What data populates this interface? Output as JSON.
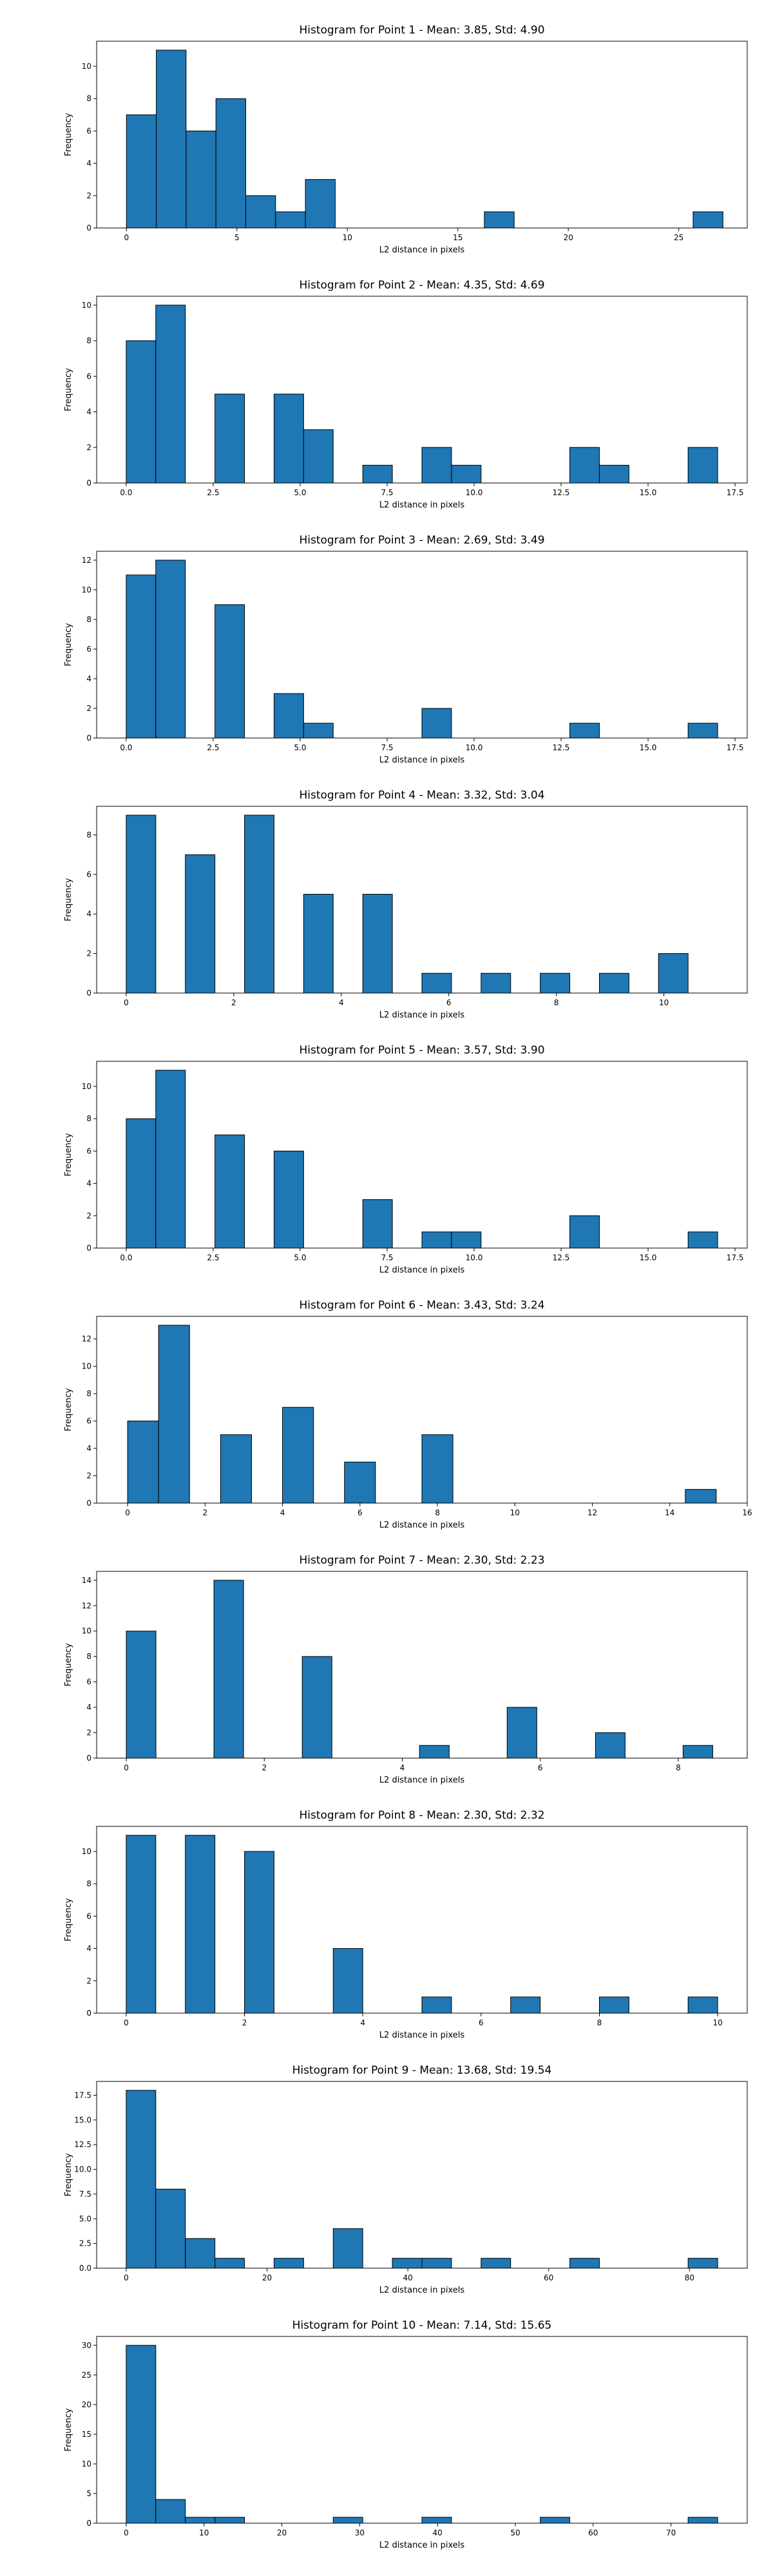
{
  "colors": {
    "bar": "#1f77b4",
    "edge": "#000000",
    "axis": "#000000",
    "background": "#ffffff"
  },
  "chart_data": [
    {
      "type": "bar",
      "title": "Histogram for Point 1 - Mean: 3.85, Std: 4.90",
      "xlabel": "L2 distance in pixels",
      "ylabel": "Frequency",
      "xlim": [
        -1.35,
        28.1
      ],
      "ylim": [
        0,
        11.55
      ],
      "xticks": [
        0,
        5,
        10,
        15,
        20,
        25
      ],
      "xtick_labels": [
        "0",
        "5",
        "10",
        "15",
        "20",
        "25"
      ],
      "yticks": [
        0,
        2,
        4,
        6,
        8,
        10
      ],
      "ytick_labels": [
        "0",
        "2",
        "4",
        "6",
        "8",
        "10"
      ],
      "bins": [
        [
          0,
          1.35,
          7
        ],
        [
          1.35,
          2.7,
          11
        ],
        [
          2.7,
          4.05,
          6
        ],
        [
          4.05,
          5.4,
          8
        ],
        [
          5.4,
          6.75,
          2
        ],
        [
          6.75,
          8.1,
          1
        ],
        [
          8.1,
          9.45,
          3
        ],
        [
          16.2,
          17.55,
          1
        ],
        [
          25.65,
          27.0,
          1
        ]
      ]
    },
    {
      "type": "bar",
      "title": "Histogram for Point 2 - Mean: 4.35, Std: 4.69",
      "xlabel": "L2 distance in pixels",
      "ylabel": "Frequency",
      "xlim": [
        -0.85,
        17.85
      ],
      "ylim": [
        0,
        10.5
      ],
      "xticks": [
        0,
        2.5,
        5,
        7.5,
        10,
        12.5,
        15,
        17.5
      ],
      "xtick_labels": [
        "0.0",
        "2.5",
        "5.0",
        "7.5",
        "10.0",
        "12.5",
        "15.0",
        "17.5"
      ],
      "yticks": [
        0,
        2,
        4,
        6,
        8,
        10
      ],
      "ytick_labels": [
        "0",
        "2",
        "4",
        "6",
        "8",
        "10"
      ],
      "bins": [
        [
          0,
          0.85,
          8
        ],
        [
          0.85,
          1.7,
          10
        ],
        [
          2.55,
          3.4,
          5
        ],
        [
          4.25,
          5.1,
          5
        ],
        [
          5.1,
          5.95,
          3
        ],
        [
          6.8,
          7.65,
          1
        ],
        [
          8.5,
          9.35,
          2
        ],
        [
          9.35,
          10.2,
          1
        ],
        [
          12.75,
          13.6,
          2
        ],
        [
          13.6,
          14.45,
          1
        ],
        [
          16.15,
          17.0,
          2
        ]
      ]
    },
    {
      "type": "bar",
      "title": "Histogram for Point 3 - Mean: 2.69, Std: 3.49",
      "xlabel": "L2 distance in pixels",
      "ylabel": "Frequency",
      "xlim": [
        -0.85,
        17.85
      ],
      "ylim": [
        0,
        12.6
      ],
      "xticks": [
        0,
        2.5,
        5,
        7.5,
        10,
        12.5,
        15,
        17.5
      ],
      "xtick_labels": [
        "0.0",
        "2.5",
        "5.0",
        "7.5",
        "10.0",
        "12.5",
        "15.0",
        "17.5"
      ],
      "yticks": [
        0,
        2,
        4,
        6,
        8,
        10,
        12
      ],
      "ytick_labels": [
        "0",
        "2",
        "4",
        "6",
        "8",
        "10",
        "12"
      ],
      "bins": [
        [
          0,
          0.85,
          11
        ],
        [
          0.85,
          1.7,
          12
        ],
        [
          2.55,
          3.4,
          9
        ],
        [
          4.25,
          5.1,
          3
        ],
        [
          5.1,
          5.95,
          1
        ],
        [
          8.5,
          9.35,
          2
        ],
        [
          12.75,
          13.6,
          1
        ],
        [
          16.15,
          17.0,
          1
        ]
      ]
    },
    {
      "type": "bar",
      "title": "Histogram for Point 4 - Mean: 3.32, Std: 3.04",
      "xlabel": "L2 distance in pixels",
      "ylabel": "Frequency",
      "xlim": [
        -0.55,
        11.55
      ],
      "ylim": [
        0,
        9.45
      ],
      "xticks": [
        0,
        2,
        4,
        6,
        8,
        10
      ],
      "xtick_labels": [
        "0",
        "2",
        "4",
        "6",
        "8",
        "10"
      ],
      "yticks": [
        0,
        2,
        4,
        6,
        8
      ],
      "ytick_labels": [
        "0",
        "2",
        "4",
        "6",
        "8"
      ],
      "bins": [
        [
          0,
          0.55,
          9
        ],
        [
          1.1,
          1.65,
          7
        ],
        [
          2.2,
          2.75,
          9
        ],
        [
          3.3,
          3.85,
          5
        ],
        [
          4.4,
          4.95,
          5
        ],
        [
          5.5,
          6.05,
          1
        ],
        [
          6.6,
          7.15,
          1
        ],
        [
          7.7,
          8.25,
          1
        ],
        [
          8.8,
          9.35,
          1
        ],
        [
          9.9,
          10.45,
          2
        ]
      ]
    },
    {
      "type": "bar",
      "title": "Histogram for Point 5 - Mean: 3.57, Std: 3.90",
      "xlabel": "L2 distance in pixels",
      "ylabel": "Frequency",
      "xlim": [
        -0.85,
        17.85
      ],
      "ylim": [
        0,
        11.55
      ],
      "xticks": [
        0,
        2.5,
        5,
        7.5,
        10,
        12.5,
        15,
        17.5
      ],
      "xtick_labels": [
        "0.0",
        "2.5",
        "5.0",
        "7.5",
        "10.0",
        "12.5",
        "15.0",
        "17.5"
      ],
      "yticks": [
        0,
        2,
        4,
        6,
        8,
        10
      ],
      "ytick_labels": [
        "0",
        "2",
        "4",
        "6",
        "8",
        "10"
      ],
      "bins": [
        [
          0,
          0.85,
          8
        ],
        [
          0.85,
          1.7,
          11
        ],
        [
          2.55,
          3.4,
          7
        ],
        [
          4.25,
          5.1,
          6
        ],
        [
          6.8,
          7.65,
          3
        ],
        [
          8.5,
          9.35,
          1
        ],
        [
          9.35,
          10.2,
          1
        ],
        [
          12.75,
          13.6,
          2
        ],
        [
          16.15,
          17.0,
          1
        ]
      ]
    },
    {
      "type": "bar",
      "title": "Histogram for Point 6 - Mean: 3.43, Std: 3.24",
      "xlabel": "L2 distance in pixels",
      "ylabel": "Frequency",
      "xlim": [
        -0.8,
        16.0
      ],
      "ylim": [
        0,
        13.65
      ],
      "xticks": [
        0,
        2,
        4,
        6,
        8,
        10,
        12,
        14,
        16
      ],
      "xtick_labels": [
        "0",
        "2",
        "4",
        "6",
        "8",
        "10",
        "12",
        "14",
        "16"
      ],
      "yticks": [
        0,
        2,
        4,
        6,
        8,
        10,
        12
      ],
      "ytick_labels": [
        "0",
        "2",
        "4",
        "6",
        "8",
        "10",
        "12"
      ],
      "bins": [
        [
          0,
          0.8,
          6
        ],
        [
          0.8,
          1.6,
          13
        ],
        [
          2.4,
          3.2,
          5
        ],
        [
          4.0,
          4.8,
          7
        ],
        [
          5.6,
          6.4,
          3
        ],
        [
          7.6,
          8.4,
          5
        ],
        [
          14.4,
          15.2,
          1
        ]
      ]
    },
    {
      "type": "bar",
      "title": "Histogram for Point 7 - Mean: 2.30, Std: 2.23",
      "xlabel": "L2 distance in pixels",
      "ylabel": "Frequency",
      "xlim": [
        -0.43,
        9.0
      ],
      "ylim": [
        0,
        14.7
      ],
      "xticks": [
        0,
        2,
        4,
        6,
        8
      ],
      "xtick_labels": [
        "0",
        "2",
        "4",
        "6",
        "8"
      ],
      "yticks": [
        0,
        2,
        4,
        6,
        8,
        10,
        12,
        14
      ],
      "ytick_labels": [
        "0",
        "2",
        "4",
        "6",
        "8",
        "10",
        "12",
        "14"
      ],
      "bins": [
        [
          0,
          0.43,
          10
        ],
        [
          1.27,
          1.7,
          14
        ],
        [
          2.55,
          2.98,
          8
        ],
        [
          4.25,
          4.68,
          1
        ],
        [
          5.52,
          5.95,
          4
        ],
        [
          6.8,
          7.23,
          2
        ],
        [
          8.07,
          8.5,
          1
        ]
      ]
    },
    {
      "type": "bar",
      "title": "Histogram for Point 8 - Mean: 2.30, Std: 2.32",
      "xlabel": "L2 distance in pixels",
      "ylabel": "Frequency",
      "xlim": [
        -0.5,
        10.5
      ],
      "ylim": [
        0,
        11.55
      ],
      "xticks": [
        0,
        2,
        4,
        6,
        8,
        10
      ],
      "xtick_labels": [
        "0",
        "2",
        "4",
        "6",
        "8",
        "10"
      ],
      "yticks": [
        0,
        2,
        4,
        6,
        8,
        10
      ],
      "ytick_labels": [
        "0",
        "2",
        "4",
        "6",
        "8",
        "10"
      ],
      "bins": [
        [
          0,
          0.5,
          11
        ],
        [
          1.0,
          1.5,
          11
        ],
        [
          2.0,
          2.5,
          10
        ],
        [
          3.5,
          4.0,
          4
        ],
        [
          5.0,
          5.5,
          1
        ],
        [
          6.5,
          7.0,
          1
        ],
        [
          8.0,
          8.5,
          1
        ],
        [
          9.5,
          10.0,
          1
        ]
      ]
    },
    {
      "type": "bar",
      "title": "Histogram for Point 9 - Mean: 13.68, Std: 19.54",
      "xlabel": "L2 distance in pixels",
      "ylabel": "Frequency",
      "xlim": [
        -4.2,
        88.2
      ],
      "ylim": [
        0,
        18.9
      ],
      "xticks": [
        0,
        20,
        40,
        60,
        80
      ],
      "xtick_labels": [
        "0",
        "20",
        "40",
        "60",
        "80"
      ],
      "yticks": [
        0,
        2.5,
        5,
        7.5,
        10,
        12.5,
        15,
        17.5
      ],
      "ytick_labels": [
        "0.0",
        "2.5",
        "5.0",
        "7.5",
        "10.0",
        "12.5",
        "15.0",
        "17.5"
      ],
      "bins": [
        [
          0,
          4.2,
          18
        ],
        [
          4.2,
          8.4,
          8
        ],
        [
          8.4,
          12.6,
          3
        ],
        [
          12.6,
          16.8,
          1
        ],
        [
          21.0,
          25.2,
          1
        ],
        [
          29.4,
          33.6,
          4
        ],
        [
          37.8,
          42.0,
          1
        ],
        [
          42.0,
          46.2,
          1
        ],
        [
          50.4,
          54.6,
          1
        ],
        [
          63.0,
          67.2,
          1
        ],
        [
          79.8,
          84.0,
          1
        ]
      ]
    },
    {
      "type": "bar",
      "title": "Histogram for Point 10 - Mean: 7.14, Std: 15.65",
      "xlabel": "L2 distance in pixels",
      "ylabel": "Frequency",
      "xlim": [
        -3.8,
        79.8
      ],
      "ylim": [
        0,
        31.5
      ],
      "xticks": [
        0,
        10,
        20,
        30,
        40,
        50,
        60,
        70
      ],
      "xtick_labels": [
        "0",
        "10",
        "20",
        "30",
        "40",
        "50",
        "60",
        "70"
      ],
      "yticks": [
        0,
        5,
        10,
        15,
        20,
        25,
        30
      ],
      "ytick_labels": [
        "0",
        "5",
        "10",
        "15",
        "20",
        "25",
        "30"
      ],
      "bins": [
        [
          0,
          3.8,
          30
        ],
        [
          3.8,
          7.6,
          4
        ],
        [
          7.6,
          11.4,
          1
        ],
        [
          11.4,
          15.2,
          1
        ],
        [
          26.6,
          30.4,
          1
        ],
        [
          38.0,
          41.8,
          1
        ],
        [
          53.2,
          57.0,
          1
        ],
        [
          72.2,
          76.0,
          1
        ]
      ]
    }
  ]
}
